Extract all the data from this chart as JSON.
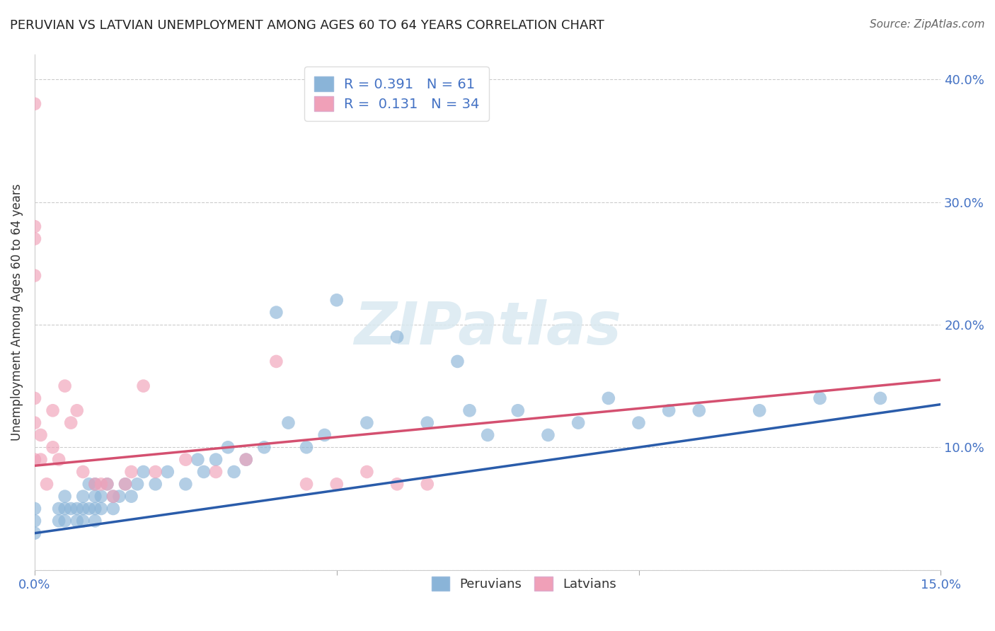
{
  "title": "PERUVIAN VS LATVIAN UNEMPLOYMENT AMONG AGES 60 TO 64 YEARS CORRELATION CHART",
  "source": "Source: ZipAtlas.com",
  "ylabel": "Unemployment Among Ages 60 to 64 years",
  "xlabel": "",
  "xlim": [
    0.0,
    0.15
  ],
  "ylim": [
    0.0,
    0.42
  ],
  "background_color": "#ffffff",
  "blue_color": "#8ab4d8",
  "pink_color": "#f0a0b8",
  "blue_line_color": "#2a5caa",
  "pink_line_color": "#d45070",
  "R_blue": 0.391,
  "N_blue": 61,
  "R_pink": 0.131,
  "N_pink": 34,
  "legend_label_blue": "Peruvians",
  "legend_label_pink": "Latvians",
  "label_color": "#4472c4",
  "grid_color": "#cccccc",
  "peruvian_x": [
    0.0,
    0.0,
    0.0,
    0.004,
    0.004,
    0.005,
    0.005,
    0.005,
    0.006,
    0.007,
    0.007,
    0.008,
    0.008,
    0.008,
    0.009,
    0.009,
    0.01,
    0.01,
    0.01,
    0.01,
    0.011,
    0.011,
    0.012,
    0.013,
    0.013,
    0.014,
    0.015,
    0.016,
    0.017,
    0.018,
    0.02,
    0.022,
    0.025,
    0.027,
    0.028,
    0.03,
    0.032,
    0.033,
    0.035,
    0.038,
    0.04,
    0.042,
    0.045,
    0.048,
    0.05,
    0.055,
    0.06,
    0.065,
    0.07,
    0.072,
    0.075,
    0.08,
    0.085,
    0.09,
    0.095,
    0.1,
    0.105,
    0.11,
    0.12,
    0.13,
    0.14
  ],
  "peruvian_y": [
    0.04,
    0.05,
    0.03,
    0.05,
    0.04,
    0.05,
    0.06,
    0.04,
    0.05,
    0.04,
    0.05,
    0.04,
    0.05,
    0.06,
    0.05,
    0.07,
    0.04,
    0.06,
    0.07,
    0.05,
    0.06,
    0.05,
    0.07,
    0.06,
    0.05,
    0.06,
    0.07,
    0.06,
    0.07,
    0.08,
    0.07,
    0.08,
    0.07,
    0.09,
    0.08,
    0.09,
    0.1,
    0.08,
    0.09,
    0.1,
    0.21,
    0.12,
    0.1,
    0.11,
    0.22,
    0.12,
    0.19,
    0.12,
    0.17,
    0.13,
    0.11,
    0.13,
    0.11,
    0.12,
    0.14,
    0.12,
    0.13,
    0.13,
    0.13,
    0.14,
    0.14
  ],
  "latvian_x": [
    0.0,
    0.0,
    0.0,
    0.0,
    0.0,
    0.0,
    0.0,
    0.001,
    0.001,
    0.002,
    0.003,
    0.003,
    0.004,
    0.005,
    0.006,
    0.007,
    0.008,
    0.01,
    0.011,
    0.012,
    0.013,
    0.015,
    0.016,
    0.018,
    0.02,
    0.025,
    0.03,
    0.035,
    0.04,
    0.045,
    0.05,
    0.055,
    0.06,
    0.065
  ],
  "latvian_y": [
    0.38,
    0.28,
    0.27,
    0.24,
    0.14,
    0.12,
    0.09,
    0.09,
    0.11,
    0.07,
    0.13,
    0.1,
    0.09,
    0.15,
    0.12,
    0.13,
    0.08,
    0.07,
    0.07,
    0.07,
    0.06,
    0.07,
    0.08,
    0.15,
    0.08,
    0.09,
    0.08,
    0.09,
    0.17,
    0.07,
    0.07,
    0.08,
    0.07,
    0.07
  ],
  "blue_line_x": [
    0.0,
    0.15
  ],
  "blue_line_y": [
    0.03,
    0.135
  ],
  "pink_line_x": [
    0.0,
    0.15
  ],
  "pink_line_y": [
    0.085,
    0.155
  ]
}
